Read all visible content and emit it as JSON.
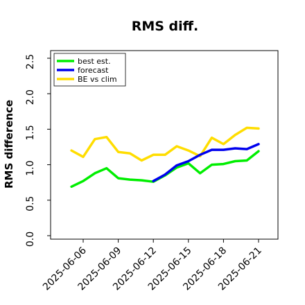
{
  "chart_data": {
    "type": "line",
    "title": "RMS diff.",
    "xlabel": "",
    "ylabel": "RMS difference",
    "ylim": [
      0.0,
      2.5
    ],
    "yticks": [
      "0.0",
      "0.5",
      "1.0",
      "1.5",
      "2.0",
      "2.5"
    ],
    "xticks": [
      "2025-06-06",
      "2025-06-09",
      "2025-06-12",
      "2025-06-15",
      "2025-06-18",
      "2025-06-21"
    ],
    "highlight_tick": "2025-06-12",
    "highlight_color": "#2e8b2e",
    "grid": false,
    "legend_position": "top-left",
    "series": [
      {
        "name": "best est.",
        "color": "#00ee00",
        "x": [
          "2025-06-05",
          "2025-06-06",
          "2025-06-07",
          "2025-06-08",
          "2025-06-09",
          "2025-06-10",
          "2025-06-11",
          "2025-06-12",
          "2025-06-13",
          "2025-06-14",
          "2025-06-15",
          "2025-06-16",
          "2025-06-17",
          "2025-06-18",
          "2025-06-19",
          "2025-06-20",
          "2025-06-21"
        ],
        "values": [
          0.69,
          0.77,
          0.88,
          0.95,
          0.81,
          0.79,
          0.78,
          0.76,
          0.85,
          0.96,
          1.02,
          0.88,
          1.0,
          1.01,
          1.05,
          1.06,
          1.19
        ]
      },
      {
        "name": "forecast",
        "color": "#0000ee",
        "x": [
          "2025-06-12",
          "2025-06-13",
          "2025-06-14",
          "2025-06-15",
          "2025-06-16",
          "2025-06-17",
          "2025-06-18",
          "2025-06-19",
          "2025-06-20",
          "2025-06-21"
        ],
        "values": [
          0.77,
          0.86,
          0.99,
          1.05,
          1.14,
          1.21,
          1.21,
          1.23,
          1.22,
          1.29
        ]
      },
      {
        "name": "BE vs clim",
        "color": "#ffdd00",
        "x": [
          "2025-06-05",
          "2025-06-06",
          "2025-06-07",
          "2025-06-08",
          "2025-06-09",
          "2025-06-10",
          "2025-06-11",
          "2025-06-12",
          "2025-06-13",
          "2025-06-14",
          "2025-06-15",
          "2025-06-16",
          "2025-06-17",
          "2025-06-18",
          "2025-06-19",
          "2025-06-20",
          "2025-06-21"
        ],
        "values": [
          1.2,
          1.11,
          1.36,
          1.39,
          1.18,
          1.16,
          1.06,
          1.14,
          1.14,
          1.26,
          1.2,
          1.12,
          1.38,
          1.29,
          1.42,
          1.52,
          1.51
        ]
      }
    ]
  }
}
